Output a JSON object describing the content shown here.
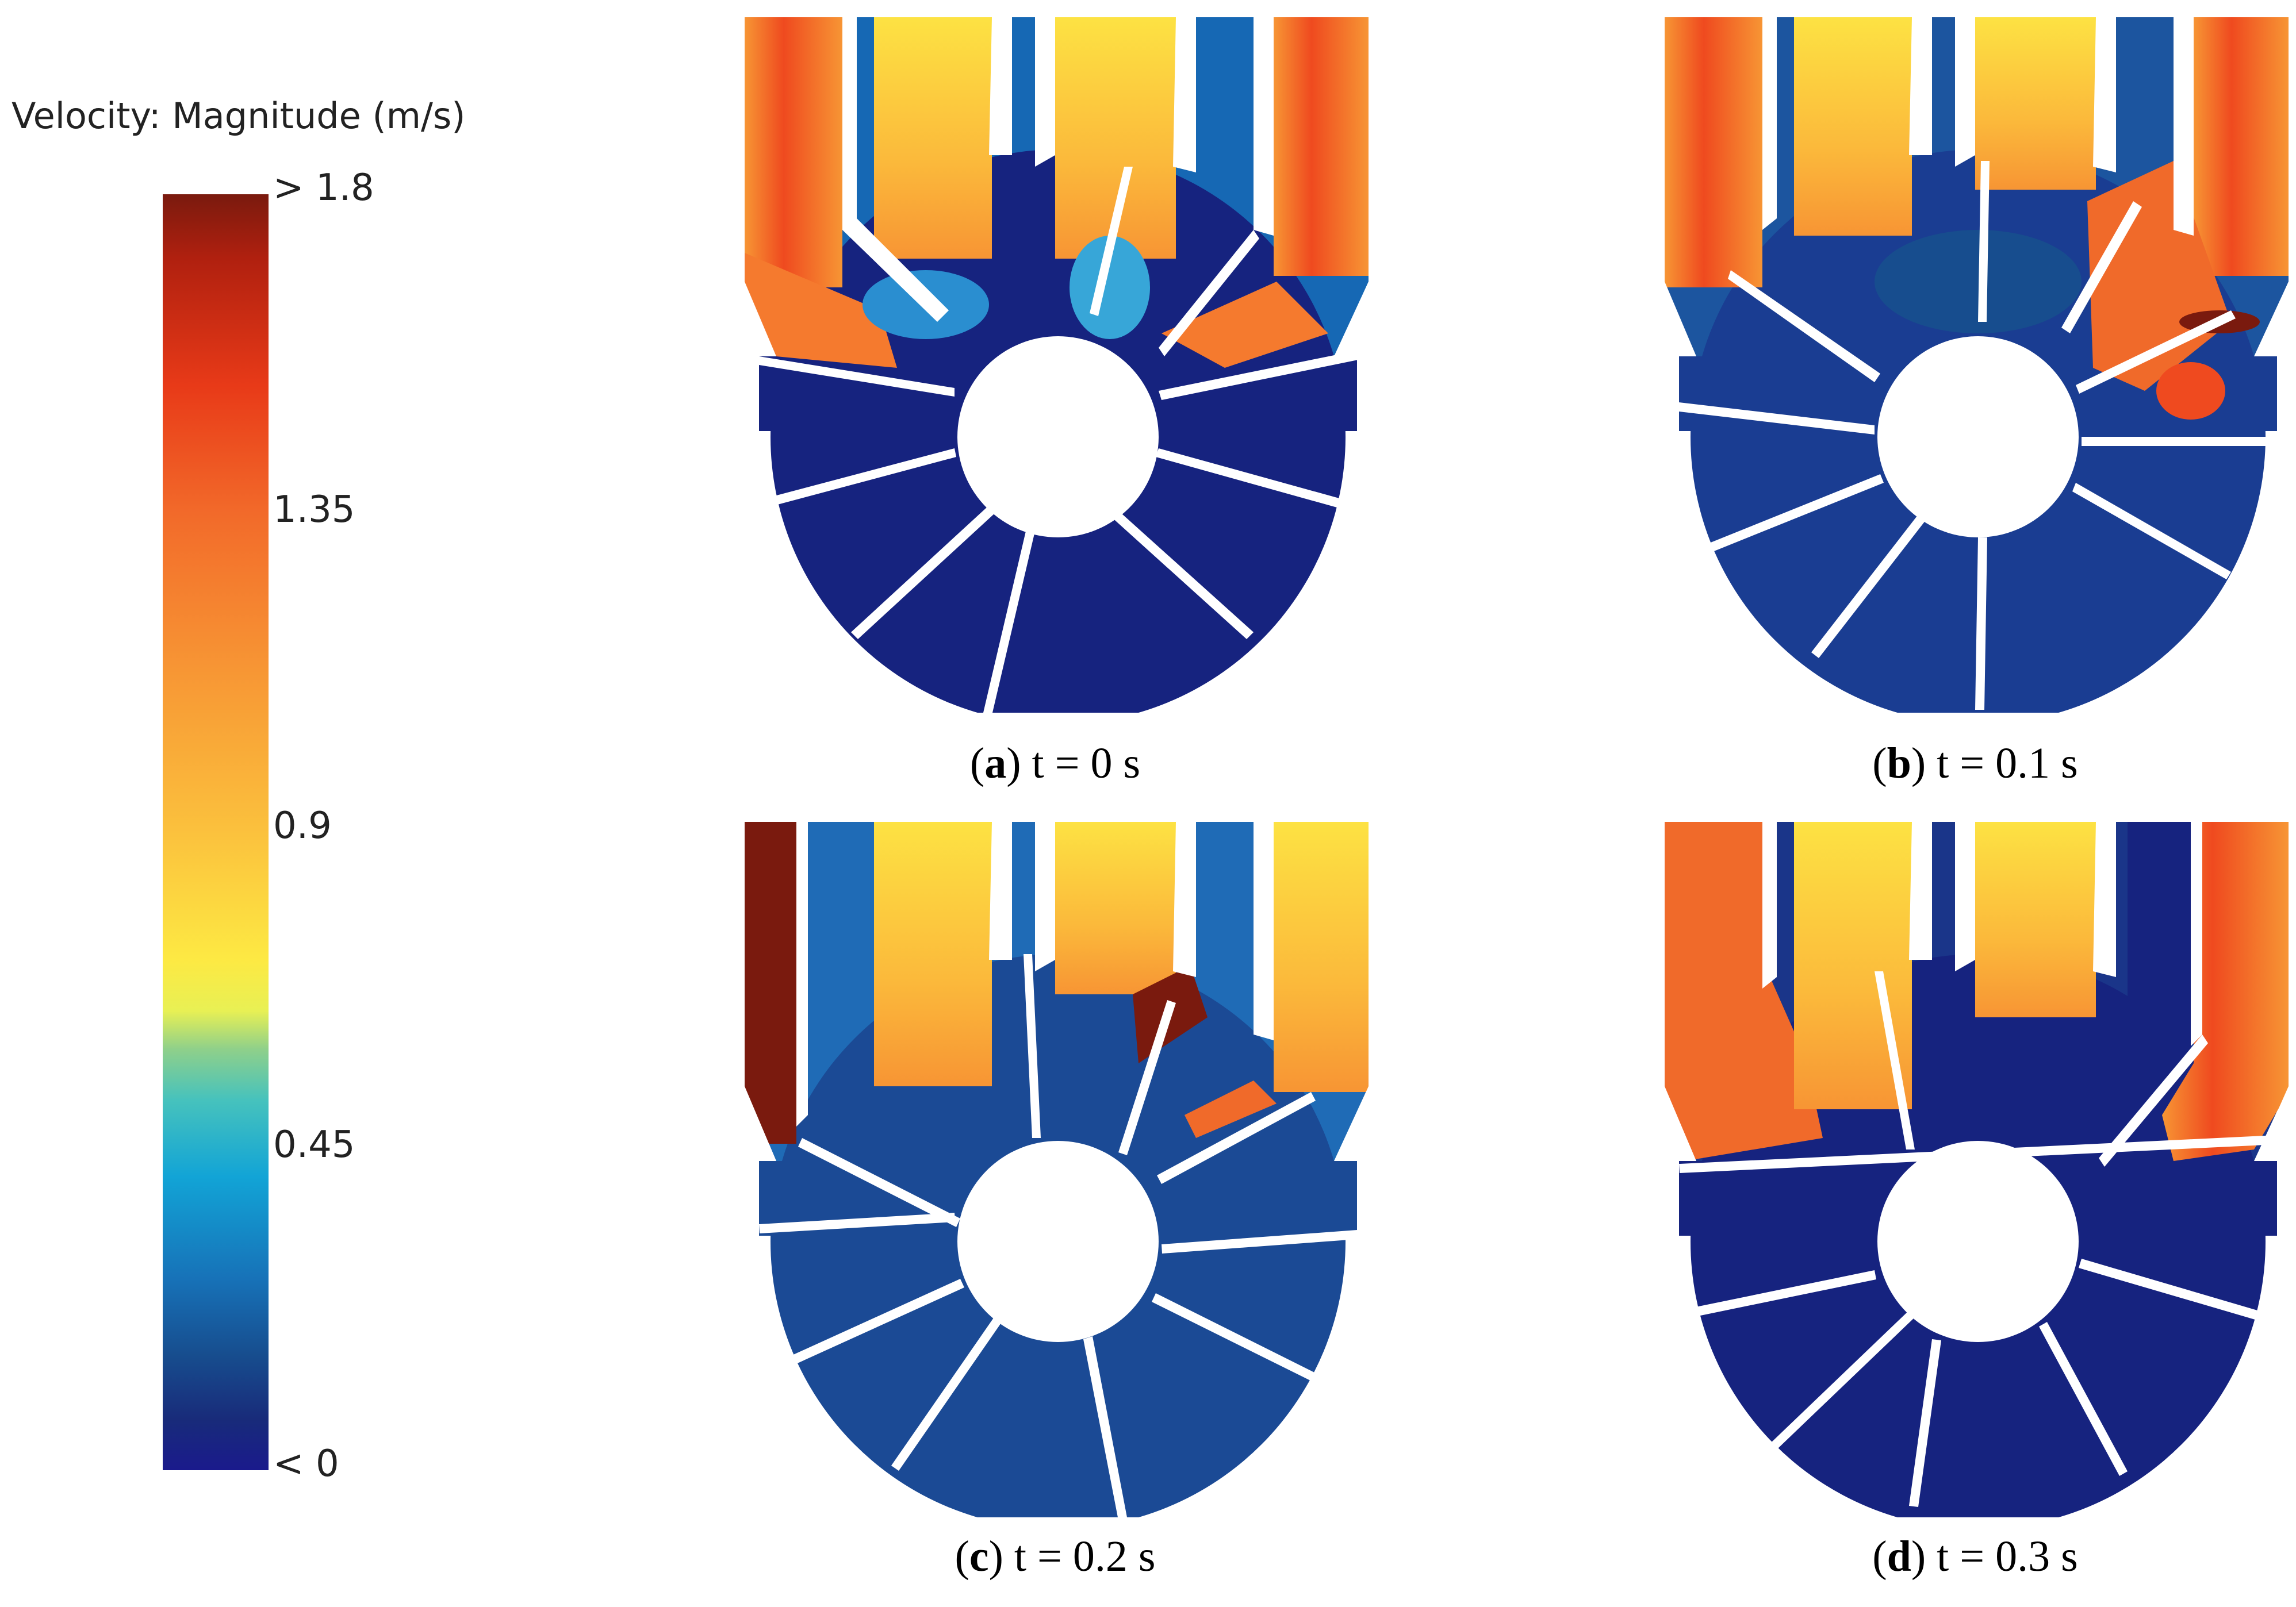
{
  "legend": {
    "title": "Velocity: Magnitude (m/s)",
    "ticks": [
      "> 1.8",
      "1.35",
      "0.9",
      "0.45",
      "< 0"
    ]
  },
  "panels": [
    {
      "letter": "a",
      "caption": " t = 0 s"
    },
    {
      "letter": "b",
      "caption": " t = 0.1 s"
    },
    {
      "letter": "c",
      "caption": " t = 0.2 s"
    },
    {
      "letter": "d",
      "caption": " t = 0.3 s"
    }
  ]
}
